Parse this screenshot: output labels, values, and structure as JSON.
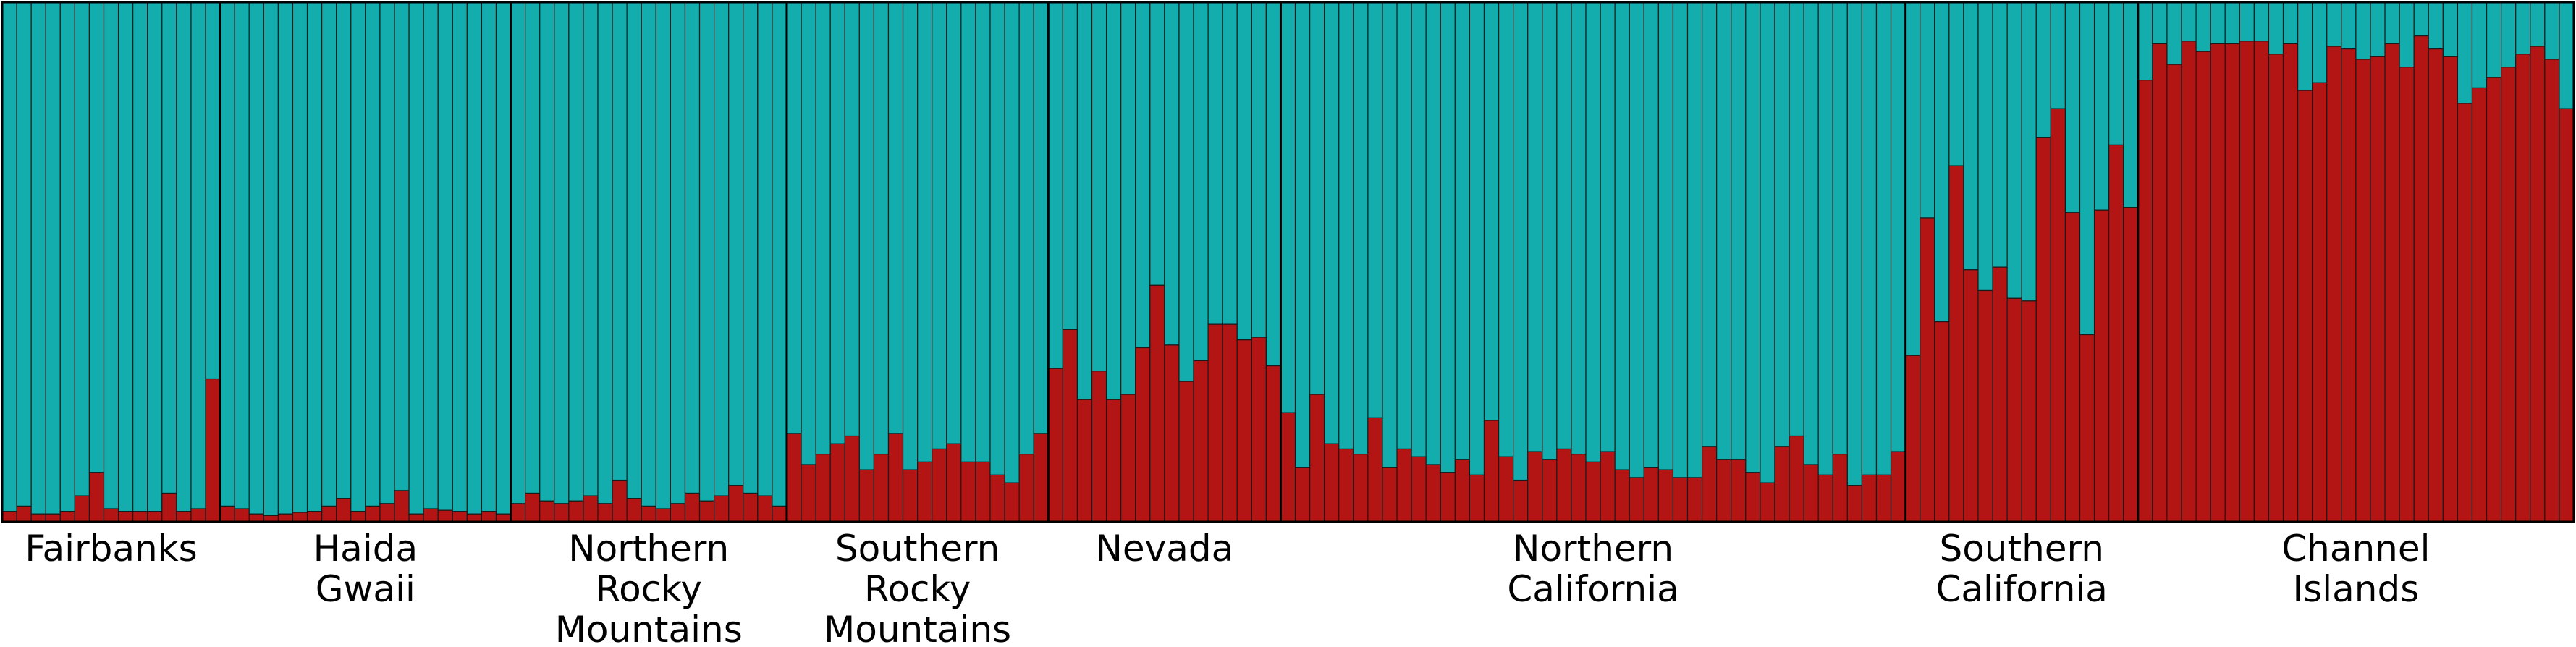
{
  "chart_data": {
    "type": "bar",
    "stacked": true,
    "title": "",
    "xlabel": "",
    "ylabel": "",
    "ylim": [
      0,
      1
    ],
    "grid": false,
    "legend": "none",
    "colors": {
      "cluster_1": "#b31515",
      "cluster_2": "#13adad",
      "edge": "#1a1a1a"
    },
    "groups": [
      {
        "name": "Fairbanks",
        "label_lines": [
          "Fairbanks"
        ],
        "values": [
          0.02,
          0.03,
          0.015,
          0.015,
          0.02,
          0.05,
          0.095,
          0.025,
          0.02,
          0.02,
          0.02,
          0.055,
          0.02,
          0.025,
          0.275
        ]
      },
      {
        "name": "Haida Gwaii",
        "label_lines": [
          "Haida",
          "Gwaii"
        ],
        "values": [
          0.03,
          0.025,
          0.015,
          0.012,
          0.015,
          0.018,
          0.02,
          0.03,
          0.045,
          0.02,
          0.03,
          0.035,
          0.06,
          0.015,
          0.025,
          0.022,
          0.02,
          0.015,
          0.02,
          0.015
        ]
      },
      {
        "name": "Northern Rocky Mountains",
        "label_lines": [
          "Northern",
          "Rocky",
          "Mountains"
        ],
        "values": [
          0.035,
          0.055,
          0.04,
          0.035,
          0.04,
          0.05,
          0.035,
          0.08,
          0.045,
          0.03,
          0.025,
          0.035,
          0.055,
          0.04,
          0.05,
          0.07,
          0.055,
          0.05,
          0.03
        ]
      },
      {
        "name": "Southern Rocky Mountains",
        "label_lines": [
          "Southern",
          "Rocky",
          "Mountains"
        ],
        "values": [
          0.17,
          0.11,
          0.13,
          0.15,
          0.165,
          0.1,
          0.13,
          0.17,
          0.1,
          0.115,
          0.14,
          0.15,
          0.115,
          0.115,
          0.09,
          0.075,
          0.13,
          0.17
        ]
      },
      {
        "name": "Nevada",
        "label_lines": [
          "Nevada"
        ],
        "values": [
          0.295,
          0.37,
          0.235,
          0.29,
          0.235,
          0.245,
          0.335,
          0.455,
          0.34,
          0.27,
          0.31,
          0.38,
          0.38,
          0.35,
          0.355,
          0.3
        ]
      },
      {
        "name": "Northern California",
        "label_lines": [
          "Northern",
          "California"
        ],
        "values": [
          0.21,
          0.105,
          0.245,
          0.15,
          0.14,
          0.13,
          0.2,
          0.105,
          0.14,
          0.125,
          0.11,
          0.095,
          0.12,
          0.09,
          0.195,
          0.125,
          0.08,
          0.135,
          0.12,
          0.14,
          0.13,
          0.115,
          0.135,
          0.1,
          0.085,
          0.105,
          0.1,
          0.085,
          0.085,
          0.145,
          0.12,
          0.12,
          0.095,
          0.075,
          0.145,
          0.165,
          0.11,
          0.09,
          0.13,
          0.07,
          0.09,
          0.09,
          0.135
        ]
      },
      {
        "name": "Southern California",
        "label_lines": [
          "Southern",
          "California"
        ],
        "values": [
          0.32,
          0.585,
          0.385,
          0.685,
          0.485,
          0.445,
          0.49,
          0.43,
          0.425,
          0.74,
          0.795,
          0.595,
          0.36,
          0.6,
          0.725,
          0.605
        ]
      },
      {
        "name": "Channel Islands",
        "label_lines": [
          "Channel",
          "Islands"
        ],
        "values": [
          0.85,
          0.92,
          0.88,
          0.925,
          0.905,
          0.92,
          0.92,
          0.925,
          0.925,
          0.9,
          0.92,
          0.83,
          0.845,
          0.915,
          0.91,
          0.89,
          0.895,
          0.92,
          0.875,
          0.935,
          0.91,
          0.895,
          0.805,
          0.835,
          0.855,
          0.875,
          0.9,
          0.915,
          0.89,
          0.795
        ]
      }
    ]
  }
}
